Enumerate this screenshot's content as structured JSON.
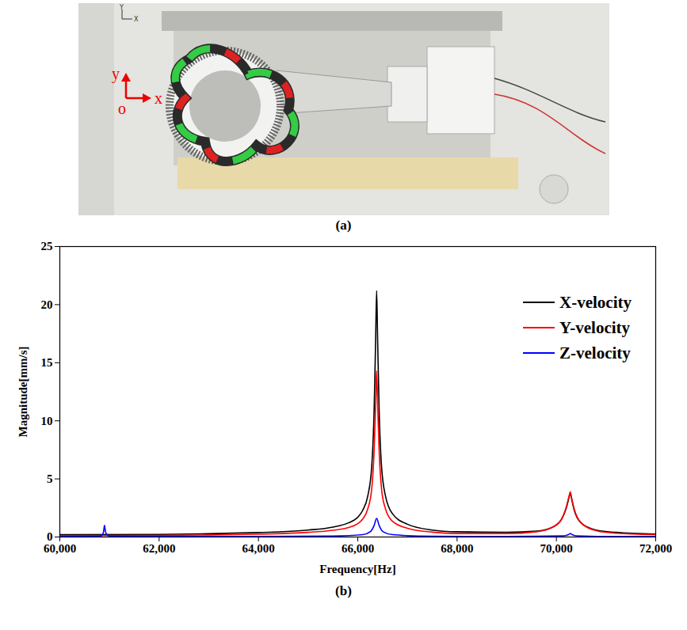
{
  "photo": {
    "caption": "(a)",
    "view_axes": [
      "Y",
      "X"
    ],
    "axis_labels": {
      "y": "y",
      "origin": "o",
      "x": "x"
    }
  },
  "chart_data": {
    "type": "line",
    "caption": "(b)",
    "x_label": "Frequency[Hz]",
    "y_label": "Magnitude[mm/s]",
    "xlim": [
      60000,
      72000
    ],
    "xticks": [
      {
        "value": 60000,
        "label": "60,000"
      },
      {
        "value": 62000,
        "label": "62,000"
      },
      {
        "value": 64000,
        "label": "64,000"
      },
      {
        "value": 66000,
        "label": "66,000"
      },
      {
        "value": 68000,
        "label": "68,000"
      },
      {
        "value": 70000,
        "label": "70,000"
      },
      {
        "value": 72000,
        "label": "72,000"
      }
    ],
    "ylim": [
      0,
      25
    ],
    "yticks": [
      0,
      5,
      10,
      15,
      20,
      25
    ],
    "grid": false,
    "legend": "upper right",
    "series": [
      {
        "name": "X-velocity",
        "color": "#000000",
        "x": [
          60000,
          62000,
          63000,
          64000,
          64500,
          65000,
          65500,
          65800,
          66000,
          66100,
          66200,
          66280,
          66330,
          66360,
          66380,
          66400,
          66430,
          66480,
          66560,
          66700,
          67000,
          67500,
          68000,
          69000,
          69600,
          69900,
          70100,
          70200,
          70260,
          70280,
          70300,
          70360,
          70500,
          70800,
          71200,
          72000
        ],
        "values": [
          0.2,
          0.22,
          0.28,
          0.38,
          0.46,
          0.6,
          0.85,
          1.2,
          1.7,
          2.3,
          3.5,
          6,
          11,
          17,
          21.2,
          17,
          11,
          6,
          3.5,
          2.0,
          1.1,
          0.6,
          0.45,
          0.4,
          0.5,
          0.8,
          1.5,
          2.5,
          3.5,
          3.8,
          3.4,
          2.3,
          1.2,
          0.6,
          0.4,
          0.25
        ]
      },
      {
        "name": "Y-velocity",
        "color": "#ff0000",
        "x": [
          60000,
          62000,
          63000,
          64000,
          64500,
          65000,
          65500,
          65800,
          66000,
          66100,
          66200,
          66280,
          66330,
          66360,
          66380,
          66400,
          66430,
          66480,
          66560,
          66700,
          67000,
          67500,
          68000,
          69000,
          69600,
          69900,
          70100,
          70200,
          70260,
          70280,
          70300,
          70360,
          70500,
          70800,
          71200,
          72000
        ],
        "values": [
          0.12,
          0.14,
          0.18,
          0.24,
          0.3,
          0.4,
          0.58,
          0.8,
          1.15,
          1.55,
          2.4,
          4.1,
          7.5,
          11.5,
          14.3,
          11.5,
          7.5,
          4.1,
          2.4,
          1.35,
          0.75,
          0.42,
          0.3,
          0.3,
          0.45,
          0.8,
          1.5,
          2.6,
          3.6,
          3.9,
          3.5,
          2.4,
          1.2,
          0.55,
          0.32,
          0.2
        ]
      },
      {
        "name": "Z-velocity",
        "color": "#0000ff",
        "x": [
          60000,
          60800,
          60860,
          60880,
          60900,
          60920,
          60950,
          61000,
          62000,
          64000,
          65500,
          66100,
          66250,
          66330,
          66380,
          66430,
          66510,
          66700,
          67500,
          69000,
          70150,
          70250,
          70280,
          70310,
          70400,
          71000,
          72000
        ],
        "values": [
          0.05,
          0.07,
          0.2,
          0.45,
          1.0,
          0.45,
          0.2,
          0.08,
          0.05,
          0.05,
          0.08,
          0.2,
          0.45,
          1.0,
          1.6,
          1.0,
          0.45,
          0.2,
          0.06,
          0.05,
          0.1,
          0.22,
          0.3,
          0.22,
          0.1,
          0.05,
          0.04
        ]
      }
    ]
  }
}
